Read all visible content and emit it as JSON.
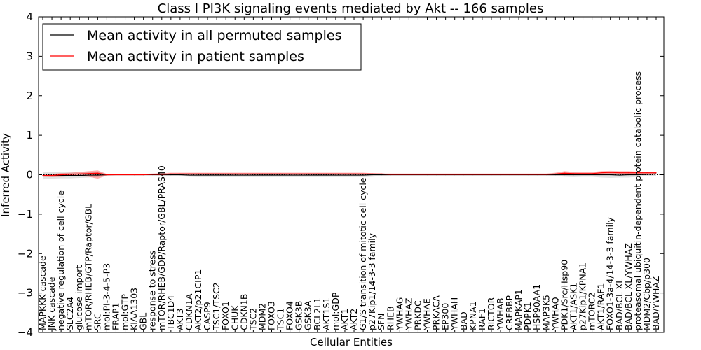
{
  "chart_data": {
    "type": "line",
    "title": "Class I PI3K signaling events mediated by Akt -- 166 samples",
    "xlabel": "Cellular Entities",
    "ylabel": "Inferred Activity",
    "ylim": [
      -4,
      4
    ],
    "yticks": [
      -4,
      -3,
      -2,
      -1,
      0,
      1,
      2,
      3,
      4
    ],
    "ytick_labels": [
      "−4",
      "−3",
      "−2",
      "−1",
      "0",
      "1",
      "2",
      "3",
      "4"
    ],
    "legend": {
      "position": "top-left",
      "entries": [
        {
          "label": "Mean activity in all permuted samples",
          "color": "#000000"
        },
        {
          "label": "Mean activity in patient samples",
          "color": "#ff0000"
        }
      ]
    },
    "categories": [
      "MAPKKK cascade",
      "JNK cascade",
      "negative regulation of cell cycle",
      "SLC2A4",
      "glucose import",
      "mTOR/RHEB/GTP/Raptor/GBL",
      "SRC",
      "mol:PI-3-4-5-P3",
      "FRAP1",
      "mol:GTP",
      "KIAA1303",
      "GBL",
      "response to stress",
      "mTOR/RHEB/GDP/Raptor/GBL/PRAS40",
      "TBC1D4",
      "AKT3",
      "CDKN1A",
      "AKT2/p21CIP1",
      "CASP9",
      "TSC1/TSC2",
      "FOXO1",
      "CHUK",
      "CDKN1B",
      "TSC2",
      "MDM2",
      "FOXO3",
      "TSC1",
      "FOXO4",
      "GSK3B",
      "GSK3A",
      "BCL2L1",
      "AKT1S1",
      "mol:GDP",
      "AKT1",
      "AKT2",
      "G1/S transition of mitotic cell cycle",
      "p27Kip1/14-3-3 family",
      "SFN",
      "RHEB",
      "YWHAG",
      "YWHAZ",
      "PRKDC",
      "YWHAE",
      "PRKACA",
      "EP300",
      "YWHAH",
      "BAD",
      "KPNA1",
      "RAF1",
      "RICTOR",
      "YWHAB",
      "CREBBP",
      "MAPKAP1",
      "PDPK1",
      "HSP90AA1",
      "MAP3K5",
      "YWHAQ",
      "PDK1/Src/Hsp90",
      "AKT1/ASK1",
      "p27Kip1/KPNA1",
      "mTORC2",
      "AKT1/RAF1",
      "FOXO1-3a-4/14-3-3 family",
      "BAD/BCL-XL",
      "BAD/BCL-XL/YWHAZ",
      "proteasomal ubiquitin-dependent protein catabolic process",
      "MDM2/Cbp/p300",
      "BAD/YWHAZ"
    ],
    "series": [
      {
        "name": "Mean activity in all permuted samples",
        "color": "#000000",
        "values": [
          -0.03,
          -0.02,
          -0.02,
          -0.02,
          -0.02,
          -0.01,
          -0.01,
          0,
          0,
          0,
          0,
          0,
          0,
          0,
          0,
          0,
          -0.01,
          -0.01,
          -0.01,
          -0.01,
          -0.01,
          -0.01,
          -0.01,
          -0.01,
          -0.01,
          -0.01,
          -0.01,
          -0.01,
          -0.01,
          -0.01,
          -0.01,
          -0.01,
          -0.01,
          -0.01,
          -0.01,
          -0.01,
          0,
          0,
          0,
          0,
          0,
          0,
          0,
          0,
          0,
          0,
          0,
          0,
          0,
          0,
          0,
          0,
          0,
          0,
          0,
          0,
          0,
          0,
          0,
          0,
          0,
          0,
          0,
          -0.01,
          0,
          0,
          0.01,
          0.02
        ],
        "band_upper": [
          0.08,
          0.08,
          0.06,
          0.06,
          0.05,
          0.06,
          0.07,
          0.02,
          0.01,
          0.01,
          0.01,
          0.01,
          0.01,
          0.01,
          0.02,
          0.03,
          0.04,
          0.04,
          0.04,
          0.04,
          0.04,
          0.04,
          0.04,
          0.04,
          0.04,
          0.04,
          0.04,
          0.04,
          0.04,
          0.04,
          0.04,
          0.04,
          0.04,
          0.04,
          0.04,
          0.03,
          0.02,
          0.01,
          0.01,
          0.01,
          0.01,
          0.01,
          0.01,
          0.01,
          0.01,
          0.01,
          0.01,
          0.01,
          0.01,
          0.01,
          0.01,
          0.01,
          0.01,
          0.01,
          0.01,
          0.01,
          0.02,
          0.04,
          0.05,
          0.04,
          0.04,
          0.05,
          0.06,
          0.05,
          0.05,
          0.04,
          0.05,
          0.05
        ],
        "band_lower": [
          -0.12,
          -0.1,
          -0.09,
          -0.09,
          -0.08,
          -0.07,
          -0.06,
          -0.02,
          -0.01,
          -0.01,
          -0.01,
          -0.01,
          -0.01,
          -0.02,
          -0.03,
          -0.04,
          -0.05,
          -0.06,
          -0.06,
          -0.06,
          -0.06,
          -0.06,
          -0.06,
          -0.06,
          -0.06,
          -0.06,
          -0.06,
          -0.06,
          -0.06,
          -0.06,
          -0.06,
          -0.06,
          -0.06,
          -0.06,
          -0.06,
          -0.06,
          -0.05,
          -0.03,
          -0.02,
          -0.02,
          -0.02,
          -0.02,
          -0.02,
          -0.02,
          -0.02,
          -0.02,
          -0.02,
          -0.02,
          -0.02,
          -0.02,
          -0.02,
          -0.02,
          -0.02,
          -0.02,
          -0.02,
          -0.02,
          -0.03,
          -0.05,
          -0.06,
          -0.05,
          -0.05,
          -0.07,
          -0.08,
          -0.07,
          -0.07,
          -0.05,
          -0.04,
          -0.03
        ]
      },
      {
        "name": "Mean activity in patient samples",
        "color": "#ff0000",
        "values": [
          -0.02,
          -0.02,
          0,
          0.01,
          0.02,
          0.03,
          0.04,
          0,
          0,
          0,
          0,
          0,
          0.01,
          0.01,
          0.02,
          0.02,
          0.02,
          0.02,
          0.02,
          0.02,
          0.02,
          0.02,
          0.02,
          0.02,
          0.02,
          0.02,
          0.02,
          0.02,
          0.02,
          0.02,
          0.02,
          0.02,
          0.02,
          0.02,
          0.02,
          0.02,
          0.02,
          0.02,
          0.01,
          0.01,
          0.01,
          0.01,
          0.01,
          0.01,
          0.01,
          0.01,
          0.01,
          0.01,
          0.01,
          0.01,
          0.01,
          0.01,
          0.01,
          0.01,
          0.01,
          0.01,
          0.02,
          0.04,
          0.03,
          0.03,
          0.03,
          0.05,
          0.06,
          0.05,
          0.05,
          0.05,
          0.05,
          0.05
        ],
        "band_upper": [
          0.01,
          0.02,
          0.04,
          0.05,
          0.07,
          0.09,
          0.11,
          0.02,
          0.01,
          0.01,
          0.01,
          0.02,
          0.03,
          0.04,
          0.05,
          0.05,
          0.05,
          0.05,
          0.05,
          0.05,
          0.05,
          0.05,
          0.05,
          0.05,
          0.05,
          0.05,
          0.05,
          0.05,
          0.05,
          0.05,
          0.05,
          0.05,
          0.05,
          0.05,
          0.05,
          0.05,
          0.04,
          0.03,
          0.03,
          0.03,
          0.03,
          0.03,
          0.03,
          0.03,
          0.03,
          0.03,
          0.03,
          0.03,
          0.03,
          0.03,
          0.03,
          0.03,
          0.03,
          0.03,
          0.03,
          0.03,
          0.05,
          0.09,
          0.07,
          0.07,
          0.07,
          0.09,
          0.1,
          0.09,
          0.09,
          0.08,
          0.07,
          0.07
        ],
        "band_lower": [
          -0.05,
          -0.06,
          -0.05,
          -0.04,
          -0.04,
          -0.05,
          -0.1,
          -0.02,
          -0.01,
          -0.01,
          -0.01,
          -0.01,
          -0.01,
          -0.01,
          -0.01,
          -0.01,
          -0.01,
          -0.01,
          -0.01,
          -0.01,
          -0.01,
          -0.01,
          -0.01,
          -0.01,
          -0.01,
          -0.01,
          -0.01,
          -0.01,
          -0.01,
          -0.01,
          -0.01,
          -0.01,
          -0.01,
          -0.01,
          -0.01,
          -0.01,
          -0.01,
          0,
          0,
          0,
          0,
          0,
          0,
          0,
          0,
          0,
          0,
          0,
          0,
          0,
          0,
          0,
          0,
          0,
          0,
          0,
          0,
          0,
          0,
          0,
          0,
          0,
          0.01,
          0.02,
          0.02,
          0.02,
          0.02,
          0.02
        ]
      }
    ],
    "baseline": 0
  }
}
